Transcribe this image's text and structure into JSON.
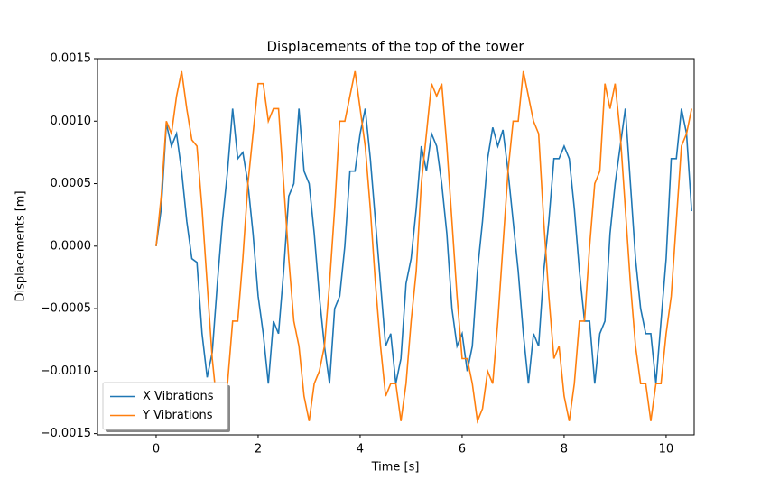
{
  "chart_data": {
    "type": "line",
    "title": "Displacements of the top of the tower",
    "xlabel": "Time [s]",
    "ylabel": "Displacements [m]",
    "x": [
      0,
      0.1,
      0.2,
      0.3,
      0.4,
      0.5,
      0.6,
      0.7,
      0.8,
      0.9,
      1.0,
      1.1,
      1.2,
      1.3,
      1.4,
      1.5,
      1.6,
      1.7,
      1.8,
      1.9,
      2.0,
      2.1,
      2.2,
      2.3,
      2.4,
      2.5,
      2.6,
      2.7,
      2.8,
      2.9,
      3.0,
      3.1,
      3.2,
      3.3,
      3.4,
      3.5,
      3.6,
      3.7,
      3.8,
      3.9,
      4.0,
      4.1,
      4.2,
      4.3,
      4.4,
      4.5,
      4.6,
      4.7,
      4.8,
      4.9,
      5.0,
      5.1,
      5.2,
      5.3,
      5.4,
      5.5,
      5.6,
      5.7,
      5.8,
      5.9,
      6.0,
      6.1,
      6.2,
      6.3,
      6.4,
      6.5,
      6.6,
      6.7,
      6.8,
      6.9,
      7.0,
      7.1,
      7.2,
      7.3,
      7.4,
      7.5,
      7.6,
      7.7,
      7.8,
      7.9,
      8.0,
      8.1,
      8.2,
      8.3,
      8.4,
      8.5,
      8.6,
      8.7,
      8.8,
      8.9,
      9.0,
      9.1,
      9.2,
      9.3,
      9.4,
      9.5,
      9.6,
      9.7,
      9.8,
      9.9,
      10.0,
      10.1,
      10.2,
      10.3,
      10.4,
      10.5
    ],
    "series": [
      {
        "name": "X Vibrations",
        "color": "#1f77b4",
        "values": [
          0,
          0.0003,
          0.00098,
          0.0008,
          0.0009,
          0.0006,
          0.0002,
          -0.0001,
          -0.00013,
          -0.0007,
          -0.00105,
          -0.00085,
          -0.0003,
          0.0002,
          0.0006,
          0.0011,
          0.0007,
          0.00075,
          0.0005,
          0.0001,
          -0.0004,
          -0.0007,
          -0.0011,
          -0.0006,
          -0.0007,
          -0.0002,
          0.0004,
          0.0005,
          0.0011,
          0.0006,
          0.0005,
          0.0001,
          -0.0004,
          -0.0008,
          -0.0011,
          -0.0005,
          -0.0004,
          0.0,
          0.0006,
          0.0006,
          0.0009,
          0.0011,
          0.0007,
          0.0002,
          -0.0003,
          -0.0008,
          -0.0007,
          -0.0011,
          -0.0009,
          -0.0003,
          -0.0001,
          0.0003,
          0.0008,
          0.0006,
          0.0009,
          0.0008,
          0.0005,
          0.0001,
          -0.0005,
          -0.0008,
          -0.0007,
          -0.001,
          -0.0008,
          -0.0002,
          0.0002,
          0.0007,
          0.00095,
          0.0008,
          0.00093,
          0.0006,
          0.0002,
          -0.0002,
          -0.0007,
          -0.0011,
          -0.0007,
          -0.0008,
          -0.0002,
          0.0002,
          0.0007,
          0.0007,
          0.0008,
          0.0007,
          0.0003,
          -0.0002,
          -0.0006,
          -0.0006,
          -0.0011,
          -0.0007,
          -0.0006,
          0.0001,
          0.0005,
          0.0008,
          0.0011,
          0.0005,
          -0.0001,
          -0.0005,
          -0.0007,
          -0.0007,
          -0.0011,
          -0.0006,
          -0.0001,
          0.0007,
          0.0007,
          0.0011,
          0.0009,
          0.00028
        ]
      },
      {
        "name": "Y Vibrations",
        "color": "#ff7f0e",
        "values": [
          0,
          0.0004,
          0.001,
          0.0009,
          0.0012,
          0.0014,
          0.0011,
          0.00085,
          0.0008,
          0.0003,
          -0.0003,
          -0.0009,
          -0.0013,
          -0.0014,
          -0.0011,
          -0.0006,
          -0.0006,
          -0.0001,
          0.0005,
          0.0009,
          0.0013,
          0.0013,
          0.001,
          0.0011,
          0.0011,
          0.0005,
          -0.0001,
          -0.0006,
          -0.0008,
          -0.0012,
          -0.0014,
          -0.0011,
          -0.001,
          -0.0008,
          -0.0003,
          0.0003,
          0.001,
          0.001,
          0.0012,
          0.0014,
          0.0011,
          0.0008,
          0.0003,
          -0.0003,
          -0.0008,
          -0.0012,
          -0.0011,
          -0.0011,
          -0.0014,
          -0.0011,
          -0.0006,
          -0.0002,
          0.0005,
          0.0009,
          0.0013,
          0.0012,
          0.0013,
          0.0008,
          0.0002,
          -0.0004,
          -0.0009,
          -0.0009,
          -0.0011,
          -0.0014,
          -0.0013,
          -0.001,
          -0.0011,
          -0.0006,
          0.0,
          0.0006,
          0.001,
          0.001,
          0.0014,
          0.0012,
          0.001,
          0.0009,
          0.0002,
          -0.0004,
          -0.0009,
          -0.0008,
          -0.0012,
          -0.0014,
          -0.0011,
          -0.0006,
          -0.0006,
          0.0,
          0.0005,
          0.0006,
          0.0013,
          0.0011,
          0.0013,
          0.0009,
          0.0003,
          -0.0003,
          -0.0008,
          -0.0011,
          -0.0011,
          -0.0014,
          -0.0011,
          -0.0011,
          -0.0007,
          -0.0004,
          0.0002,
          0.0008,
          0.0009,
          0.0011
        ]
      }
    ],
    "xlim": [
      -1.15,
      10.55
    ],
    "ylim": [
      -0.00151,
      0.0015
    ],
    "xticks": [
      0,
      2,
      4,
      6,
      8,
      10
    ],
    "yticks": [
      {
        "value": -0.0015,
        "label": "−0.0015"
      },
      {
        "value": -0.001,
        "label": "−0.0010"
      },
      {
        "value": -0.0005,
        "label": "−0.0005"
      },
      {
        "value": 0,
        "label": "0.0000"
      },
      {
        "value": 0.0005,
        "label": "0.0005"
      },
      {
        "value": 0.001,
        "label": "0.0010"
      },
      {
        "value": 0.0015,
        "label": "0.0015"
      }
    ],
    "grid": false,
    "legend": "lower left"
  }
}
